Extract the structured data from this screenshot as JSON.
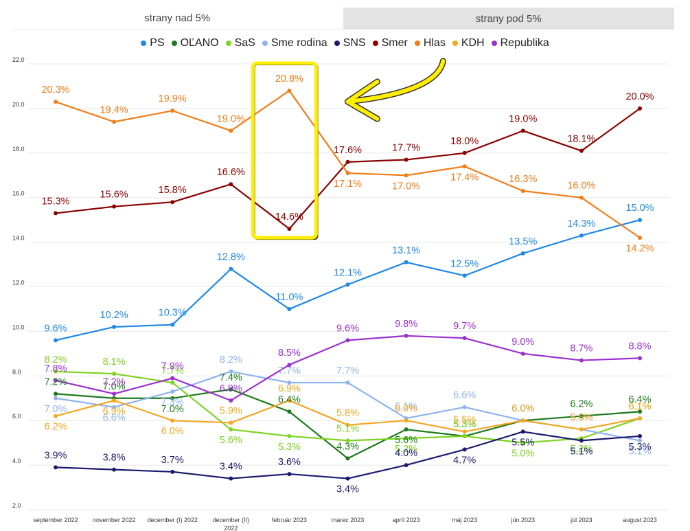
{
  "tabs": [
    {
      "label": "strany nad 5%"
    },
    {
      "label": "strany pod 5%"
    }
  ],
  "chart_data": {
    "type": "line",
    "title": "",
    "xlabel": "",
    "ylabel": "",
    "ylim": [
      2.0,
      22.0
    ],
    "yticks": [
      "2.0",
      "4.0",
      "6.0",
      "8.0",
      "10.0",
      "12.0",
      "14.0",
      "16.0",
      "18.0",
      "20.0",
      "22.0"
    ],
    "grid": true,
    "legend_position": "top",
    "categories": [
      "september 2022",
      "november 2022",
      "december (I) 2022",
      "december (II) 2022",
      "február 2023",
      "marec 2023",
      "apríl 2023",
      "máj 2023",
      "jún 2023",
      "júl 2023",
      "august 2023"
    ],
    "series": [
      {
        "name": "PS",
        "color": "#1e88e5",
        "values": [
          9.6,
          10.2,
          10.3,
          12.8,
          11.0,
          12.1,
          13.1,
          12.5,
          13.5,
          14.3,
          15.0
        ]
      },
      {
        "name": "OĽANO",
        "color": "#1b7a1b",
        "values": [
          7.2,
          7.0,
          7.0,
          7.4,
          6.4,
          4.3,
          5.6,
          5.3,
          6.0,
          6.2,
          6.4
        ]
      },
      {
        "name": "SaS",
        "color": "#7ed321",
        "values": [
          8.2,
          8.1,
          7.7,
          5.6,
          5.3,
          5.1,
          5.2,
          5.3,
          5.0,
          5.2,
          6.1
        ]
      },
      {
        "name": "Sme rodina",
        "color": "#8fb3f0",
        "values": [
          7.0,
          6.6,
          7.3,
          8.2,
          7.7,
          7.7,
          6.1,
          6.6,
          6.0,
          5.6,
          5.1
        ]
      },
      {
        "name": "SNS",
        "color": "#1a1a6e",
        "values": [
          3.9,
          3.8,
          3.7,
          3.4,
          3.6,
          3.4,
          4.0,
          4.7,
          5.5,
          5.1,
          5.3
        ]
      },
      {
        "name": "Smer",
        "color": "#8b0000",
        "values": [
          15.3,
          15.6,
          15.8,
          16.6,
          14.6,
          17.6,
          17.7,
          18.0,
          19.0,
          18.1,
          20.0
        ]
      },
      {
        "name": "Hlas",
        "color": "#f07d1a",
        "values": [
          20.3,
          19.4,
          19.9,
          19.0,
          20.8,
          17.1,
          17.0,
          17.4,
          16.3,
          16.0,
          14.2
        ]
      },
      {
        "name": "KDH",
        "color": "#f5a623",
        "values": [
          6.2,
          6.9,
          6.0,
          5.9,
          6.9,
          5.8,
          6.0,
          5.5,
          6.0,
          5.6,
          6.1
        ]
      },
      {
        "name": "Republika",
        "color": "#9b30d0",
        "values": [
          7.8,
          7.2,
          7.9,
          6.9,
          8.5,
          9.6,
          9.8,
          9.7,
          9.0,
          8.7,
          8.8
        ]
      }
    ],
    "annotations": [
      {
        "type": "highlight-box",
        "category": "február 2023",
        "color": "#ffee00"
      },
      {
        "type": "arrow",
        "pointing_to": "február 2023",
        "color": "#ffee00"
      }
    ]
  }
}
